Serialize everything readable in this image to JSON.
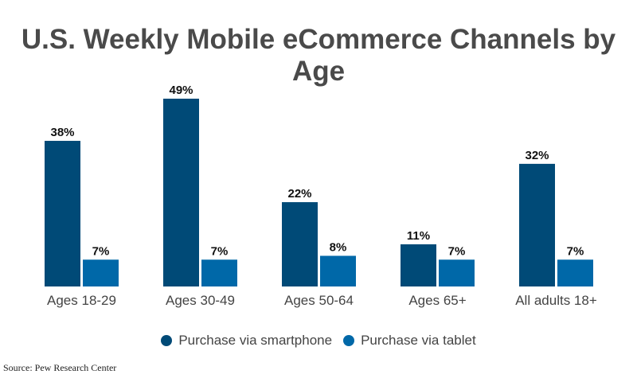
{
  "chart_data": {
    "type": "bar",
    "title": "U.S. Weekly Mobile eCommerce Channels by Age",
    "categories": [
      "Ages 18-29",
      "Ages 30-49",
      "Ages 50-64",
      "Ages 65+",
      "All adults 18+"
    ],
    "series": [
      {
        "name": "Purchase via smartphone",
        "values": [
          38,
          49,
          22,
          11,
          32
        ],
        "labels": [
          "38%",
          "49%",
          "22%",
          "11%",
          "32%"
        ],
        "color": "#004a77"
      },
      {
        "name": "Purchase via tablet",
        "values": [
          7,
          7,
          8,
          7,
          7
        ],
        "labels": [
          "7%",
          "7%",
          "8%",
          "7%",
          "7%"
        ],
        "color": "#0068a8"
      }
    ],
    "ylim": [
      0,
      50
    ],
    "grid": false,
    "legend_position": "bottom",
    "source": "Source: Pew Research Center"
  }
}
